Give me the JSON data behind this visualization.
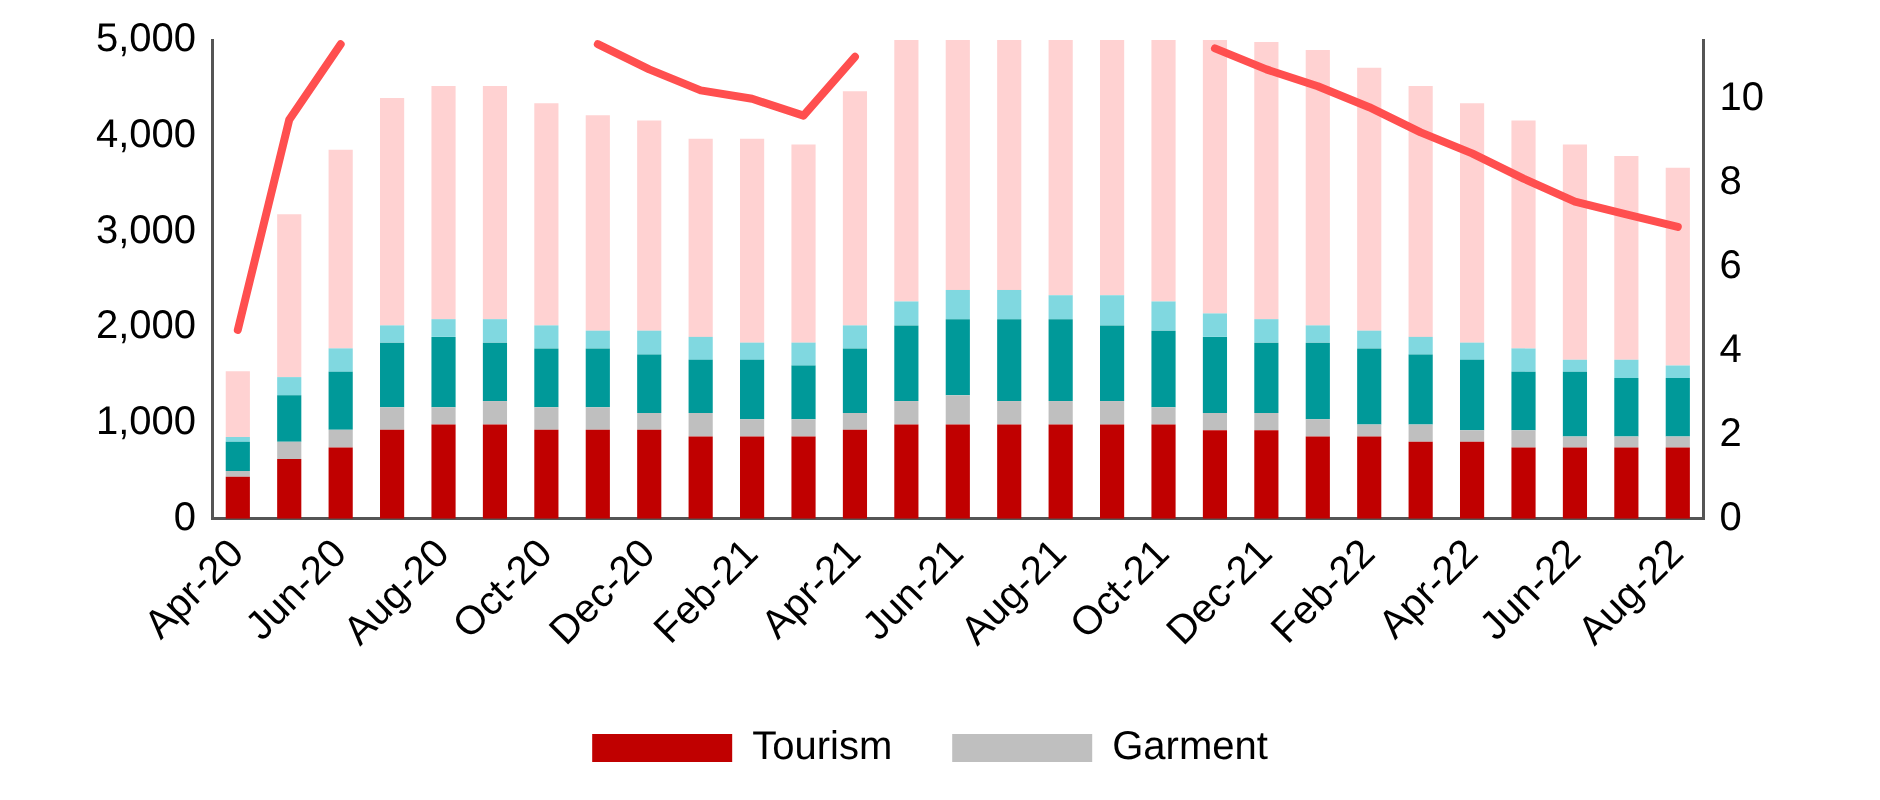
{
  "chart_data": {
    "type": "bar",
    "stacked": true,
    "legend": "bottom",
    "grid": false,
    "marker": "none",
    "categories": [
      "Apr-20",
      null,
      "Jun-20",
      null,
      "Aug-20",
      null,
      "Oct-20",
      null,
      "Dec-20",
      null,
      "Feb-21",
      null,
      "Apr-21",
      null,
      "Jun-21",
      null,
      "Aug-21",
      null,
      "Oct-21",
      null,
      "Dec-21",
      null,
      "Feb-22",
      null,
      "Apr-22",
      null,
      "Jun-22",
      null,
      "Aug-22"
    ],
    "ylim": [
      0,
      5000
    ],
    "yticks": [
      {
        "value": 0,
        "label": "0"
      },
      {
        "value": 1000,
        "label": "1,000"
      },
      {
        "value": 2000,
        "label": "2,000"
      },
      {
        "value": 3000,
        "label": "3,000"
      },
      {
        "value": 4000,
        "label": "4,000"
      },
      {
        "value": 5000,
        "label": "5,000"
      }
    ],
    "y2lim": [
      0,
      11.4
    ],
    "y2ticks": [
      0,
      2,
      4,
      6,
      8,
      10
    ],
    "series": [
      {
        "name": "Tourism",
        "color": "#c00000",
        "values": [
          440,
          625,
          745,
          930,
          985,
          985,
          930,
          930,
          930,
          860,
          860,
          860,
          930,
          985,
          985,
          985,
          985,
          985,
          985,
          925,
          925,
          860,
          860,
          805,
          805,
          745,
          745,
          745,
          745
        ]
      },
      {
        "name": "Garment",
        "color": "#bfbfbf",
        "values": [
          60,
          180,
          185,
          235,
          180,
          245,
          235,
          235,
          175,
          245,
          180,
          180,
          175,
          245,
          305,
          245,
          245,
          245,
          180,
          180,
          180,
          180,
          125,
          180,
          120,
          180,
          115,
          115,
          115
        ]
      },
      {
        "color": "#009999",
        "values": [
          305,
          485,
          605,
          675,
          735,
          610,
          615,
          615,
          610,
          555,
          620,
          560,
          675,
          790,
          795,
          855,
          855,
          790,
          800,
          795,
          735,
          800,
          795,
          730,
          735,
          610,
          675,
          610,
          610
        ]
      },
      {
        "color": "#80d8e0",
        "values": [
          50,
          190,
          245,
          180,
          185,
          245,
          240,
          185,
          250,
          240,
          180,
          240,
          240,
          250,
          305,
          305,
          250,
          315,
          305,
          245,
          245,
          180,
          185,
          185,
          180,
          245,
          125,
          190,
          130
        ]
      },
      {
        "color": "#ffd2d2",
        "values": [
          685,
          1700,
          2075,
          2375,
          2435,
          2435,
          2320,
          2250,
          2195,
          2070,
          2130,
          2070,
          2445,
          2730,
          2610,
          2610,
          2665,
          2665,
          2730,
          2855,
          2895,
          2875,
          2745,
          2620,
          2500,
          2380,
          2250,
          2130,
          2065
        ]
      },
      {
        "type": "line",
        "axis": "y2",
        "color": "#ff4f4f",
        "values": [
          4.5,
          9.5,
          11.3,
          null,
          null,
          null,
          null,
          11.3,
          10.7,
          10.2,
          10.0,
          9.6,
          11.0,
          null,
          null,
          null,
          null,
          null,
          null,
          11.2,
          10.7,
          10.3,
          9.8,
          9.2,
          8.7,
          8.1,
          7.55,
          7.25,
          6.95
        ]
      }
    ]
  }
}
